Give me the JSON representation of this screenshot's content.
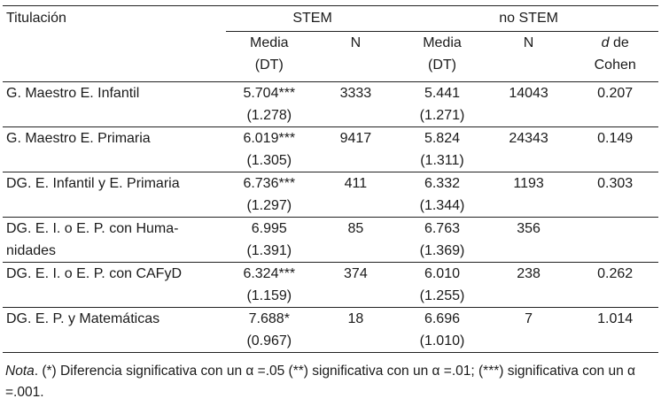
{
  "table": {
    "header": {
      "titulacion": "Titulación",
      "group_stem": "STEM",
      "group_no_stem": "no STEM",
      "media_line1": "Media",
      "media_line2": "(DT)",
      "n": "N",
      "d_symbol": "d",
      "d_rest": "de",
      "d_line2": "Cohen"
    },
    "rows": [
      {
        "label": "G. Maestro E. Infantil",
        "label2": "",
        "stem_mean": "5.704***",
        "stem_sd": "(1.278)",
        "stem_n": "3333",
        "nostem_mean": "5.441",
        "nostem_sd": "(1.271)",
        "nostem_n": "14043",
        "d": "0.207"
      },
      {
        "label": "G. Maestro E. Primaria",
        "label2": "",
        "stem_mean": "6.019***",
        "stem_sd": "(1.305)",
        "stem_n": "9417",
        "nostem_mean": "5.824",
        "nostem_sd": "(1.311)",
        "nostem_n": "24343",
        "d": "0.149"
      },
      {
        "label": "DG. E. Infantil y E. Primaria",
        "label2": "",
        "stem_mean": "6.736***",
        "stem_sd": "(1.297)",
        "stem_n": "411",
        "nostem_mean": "6.332",
        "nostem_sd": "(1.344)",
        "nostem_n": "1193",
        "d": "0.303"
      },
      {
        "label": "DG. E. I. o E. P. con Huma-",
        "label2": "nidades",
        "stem_mean": "6.995",
        "stem_sd": "(1.391)",
        "stem_n": "85",
        "nostem_mean": "6.763",
        "nostem_sd": "(1.369)",
        "nostem_n": "356",
        "d": ""
      },
      {
        "label": "DG. E. I. o E. P. con CAFyD",
        "label2": "",
        "stem_mean": "6.324***",
        "stem_sd": "(1.159)",
        "stem_n": "374",
        "nostem_mean": "6.010",
        "nostem_sd": "(1.255)",
        "nostem_n": "238",
        "d": "0.262"
      },
      {
        "label": "DG. E. P. y Matemáticas",
        "label2": "",
        "stem_mean": "7.688*",
        "stem_sd": "(0.967)",
        "stem_n": "18",
        "nostem_mean": "6.696",
        "nostem_sd": "(1.010)",
        "nostem_n": "7",
        "d": "1.014"
      }
    ]
  },
  "note": {
    "label": "Nota",
    "text": ". (*) Diferencia significativa con un α =.05 (**) significativa con un α =.01; (***) significativa con un α =.001."
  }
}
